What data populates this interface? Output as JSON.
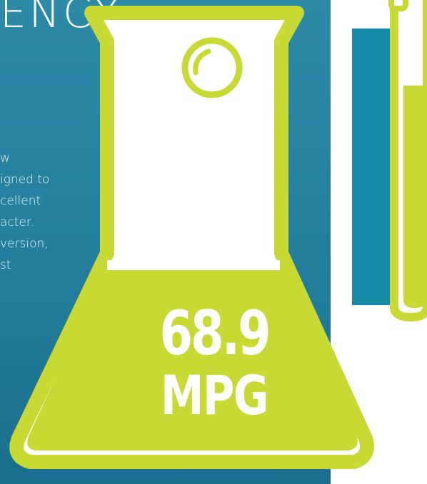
{
  "heading": "ENCY",
  "body_lines": [
    "w",
    "igned to",
    "cellent",
    "acter.",
    "version,",
    "st"
  ],
  "fuel_economy": {
    "value": "68.9",
    "unit": "MPG"
  },
  "colors": {
    "accent": "#c8d933",
    "blue": "#1788a6",
    "white": "#ffffff"
  }
}
